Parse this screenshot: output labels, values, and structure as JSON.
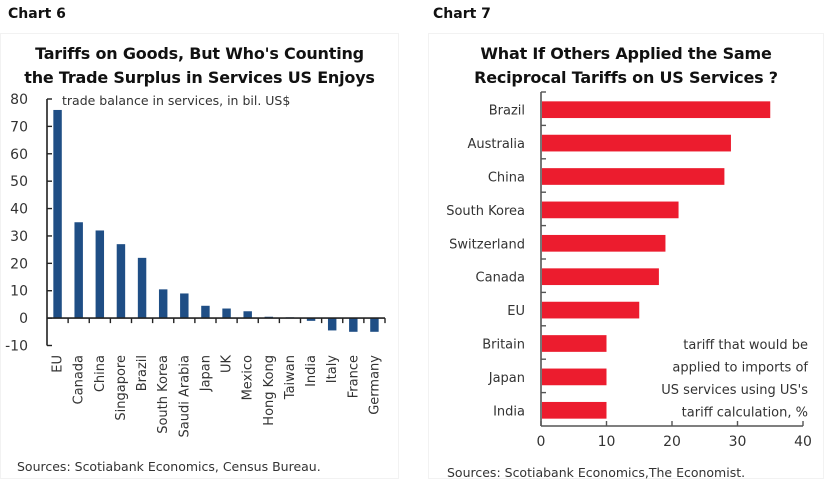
{
  "labels": {
    "chart6": "Chart 6",
    "chart7": "Chart 7"
  },
  "colors": {
    "chart6_bar": "#1f4e85",
    "chart7_bar": "#ec1c2e",
    "axis": "#222222"
  },
  "chart_data": [
    {
      "type": "bar",
      "title_lines": [
        "Tariffs on Goods, But Who's Counting",
        "the Trade Surplus in Services US Enjoys"
      ],
      "annotation": "trade balance in services, in bil. US$",
      "source": "Sources: Scotiabank Economics, Census Bureau.",
      "xlabel": "",
      "ylabel": "trade balance in services, in bil. US$",
      "ylim": [
        -10,
        80
      ],
      "yticks": [
        80,
        70,
        60,
        50,
        40,
        30,
        20,
        10,
        0,
        -10
      ],
      "grid": false,
      "categories": [
        "EU",
        "Canada",
        "China",
        "Singapore",
        "Brazil",
        "South Korea",
        "Saudi Arabia",
        "Japan",
        "UK",
        "Mexico",
        "Hong Kong",
        "Taiwan",
        "India",
        "Italy",
        "France",
        "Germany"
      ],
      "values": [
        76,
        35,
        32,
        27,
        22,
        10.5,
        9,
        4.5,
        3.5,
        2.5,
        0.5,
        0.3,
        -1,
        -4.5,
        -5,
        -5
      ]
    },
    {
      "type": "bar",
      "orientation": "horizontal",
      "title_lines": [
        "What If Others Applied the Same",
        "Reciprocal Tariffs on US Services ?"
      ],
      "annotation_lines": [
        "tariff that would be",
        "applied to imports of",
        "US services using US's",
        "tariff calculation, %"
      ],
      "source": "Sources: Scotiabank Economics,The Economist.",
      "xlabel": "tariff that would be applied to imports of US services using US's tariff calculation, %",
      "ylabel": "",
      "xlim": [
        0,
        40
      ],
      "xticks": [
        0,
        10,
        20,
        30,
        40
      ],
      "grid": false,
      "categories": [
        "Brazil",
        "Australia",
        "China",
        "South Korea",
        "Switzerland",
        "Canada",
        "EU",
        "Britain",
        "Japan",
        "India"
      ],
      "values": [
        35,
        29,
        28,
        21,
        19,
        18,
        15,
        10,
        10,
        10
      ]
    }
  ]
}
